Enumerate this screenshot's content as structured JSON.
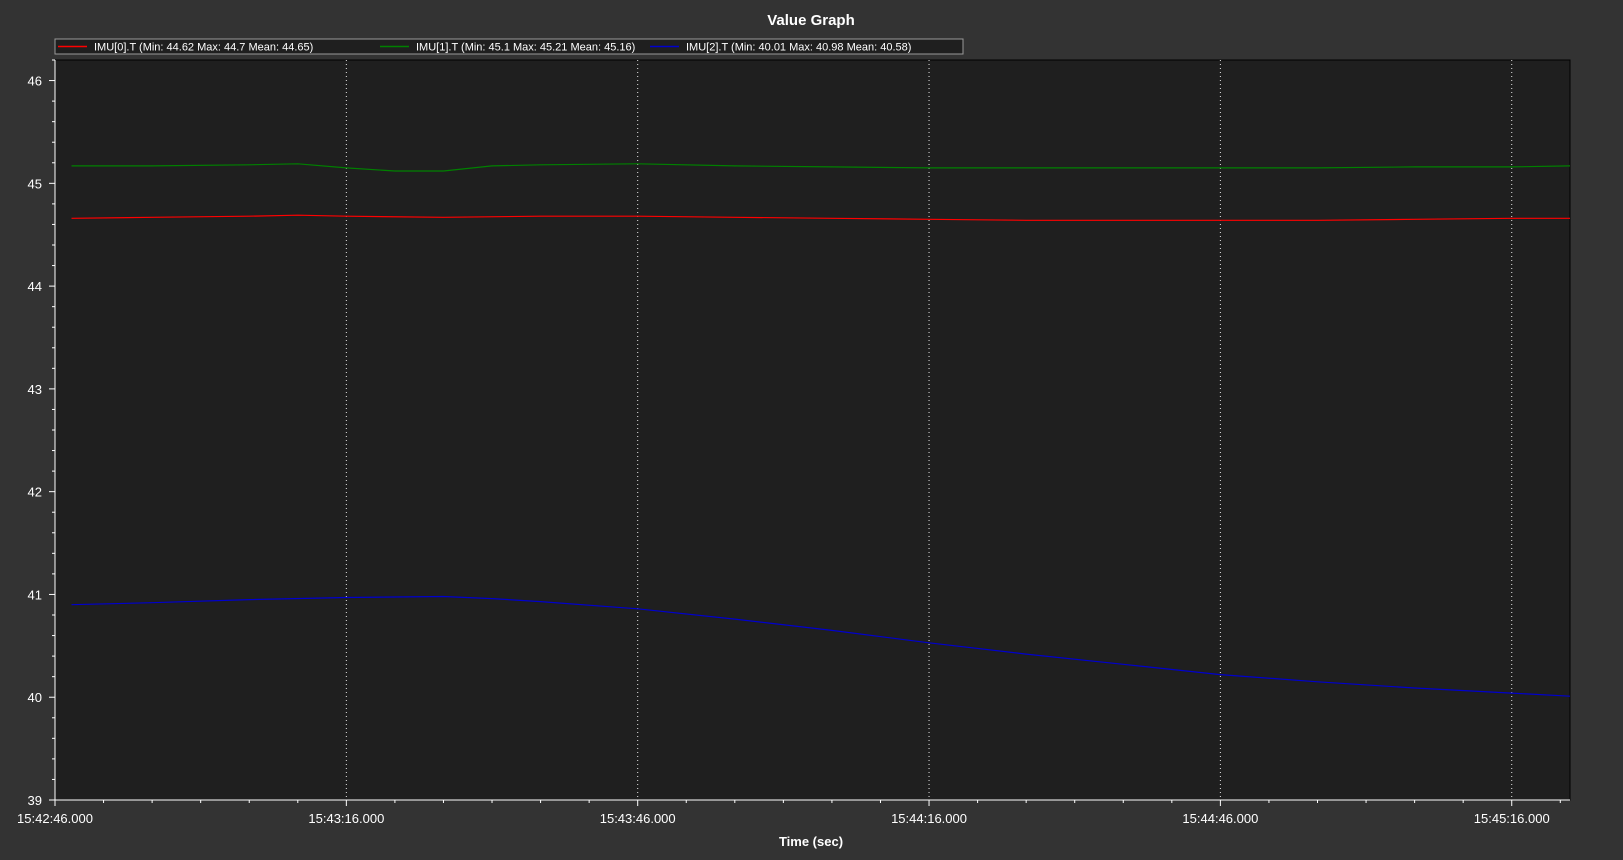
{
  "chart_data": {
    "type": "line",
    "title": "Value Graph",
    "xlabel": "Time (sec)",
    "ylabel": "",
    "x_tick_labels": [
      "15:42:46.000",
      "15:43:16.000",
      "15:43:46.000",
      "15:44:16.000",
      "15:44:46.000",
      "15:45:16.000"
    ],
    "x_tick_seconds": [
      0,
      30,
      60,
      90,
      120,
      150
    ],
    "xlim_seconds": [
      0,
      156
    ],
    "ylim": [
      39,
      46.2
    ],
    "y_ticks": [
      39,
      40,
      41,
      42,
      43,
      44,
      45,
      46
    ],
    "grid": "vertical dotted at major x ticks",
    "legend_position": "top-left",
    "series": [
      {
        "name": "IMU[0].T",
        "legend_label": "IMU[0].T  (Min: 44.62 Max: 44.7 Mean: 44.65)",
        "color": "#ff0000",
        "x_seconds": [
          1.7,
          10,
          20,
          25,
          30,
          40,
          50,
          60,
          70,
          80,
          90,
          100,
          110,
          120,
          130,
          140,
          150,
          156
        ],
        "values": [
          44.66,
          44.67,
          44.68,
          44.69,
          44.68,
          44.67,
          44.68,
          44.68,
          44.67,
          44.66,
          44.65,
          44.64,
          44.64,
          44.64,
          44.64,
          44.65,
          44.66,
          44.66
        ]
      },
      {
        "name": "IMU[1].T",
        "legend_label": "IMU[1].T  (Min: 45.1 Max: 45.21 Mean: 45.16)",
        "color": "#008000",
        "x_seconds": [
          1.7,
          10,
          20,
          25,
          30,
          35,
          40,
          45,
          50,
          60,
          70,
          80,
          90,
          100,
          110,
          120,
          130,
          140,
          150,
          156
        ],
        "values": [
          45.17,
          45.17,
          45.18,
          45.19,
          45.15,
          45.12,
          45.12,
          45.17,
          45.18,
          45.19,
          45.17,
          45.16,
          45.15,
          45.15,
          45.15,
          45.15,
          45.15,
          45.16,
          45.16,
          45.17
        ]
      },
      {
        "name": "IMU[2].T",
        "legend_label": "IMU[2].T  (Min: 40.01 Max: 40.98 Mean: 40.58)",
        "color": "#0000cd",
        "x_seconds": [
          1.7,
          10,
          20,
          30,
          40,
          45,
          50,
          60,
          70,
          80,
          90,
          100,
          110,
          120,
          130,
          140,
          150,
          156
        ],
        "values": [
          40.9,
          40.92,
          40.95,
          40.97,
          40.98,
          40.96,
          40.93,
          40.86,
          40.76,
          40.65,
          40.53,
          40.42,
          40.32,
          40.22,
          40.15,
          40.09,
          40.04,
          40.01
        ]
      }
    ]
  }
}
